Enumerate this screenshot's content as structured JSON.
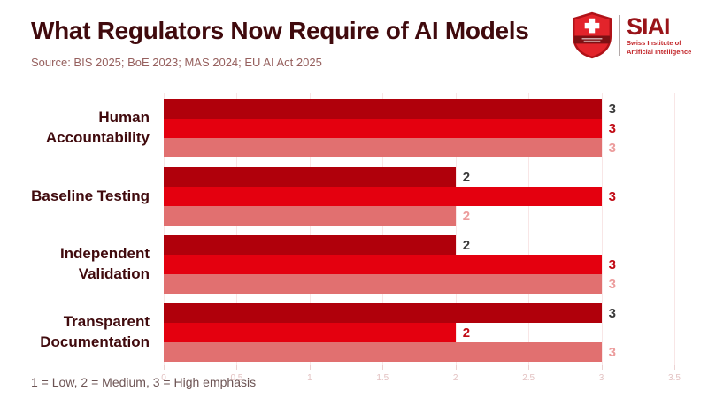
{
  "header": {
    "title": "What Regulators Now Require of AI Models"
  },
  "logo": {
    "acronym": "SIAI",
    "subtitle_line1": "Swiss Institute of",
    "subtitle_line2": "Artificial Intelligence",
    "shield_icon": "swiss-shield-icon",
    "acronym_color": "#991419",
    "subtitle_color": "#c22428"
  },
  "chart_data": {
    "type": "bar",
    "orientation": "horizontal",
    "title": "What Regulators Now Require of AI Models",
    "source": "Source: BIS 2025; BoE 2023; MAS 2024; EU AI Act 2025",
    "footnote": "1 = Low, 2 = Medium, 3 = High emphasis",
    "categories": [
      "Human Accountability",
      "Baseline Testing",
      "Independent Validation",
      "Transparent Documentation"
    ],
    "series": [
      {
        "name": "series-1-top",
        "color": "#b0000b",
        "label_color": "#3a3a3a",
        "values": [
          3,
          2,
          2,
          3
        ]
      },
      {
        "name": "series-2-middle",
        "color": "#e4000f",
        "label_color": "#c10a14",
        "values": [
          3,
          3,
          3,
          2
        ]
      },
      {
        "name": "series-3-bottom",
        "color": "#e17070",
        "label_color": "#ec9c9c",
        "values": [
          3,
          2,
          3,
          3
        ]
      }
    ],
    "xlim": [
      0,
      3.5
    ],
    "xticks": [
      "0",
      "0.5",
      "1",
      "1.5",
      "2",
      "2.5",
      "3",
      "3.5"
    ],
    "grid": true,
    "legend": "none",
    "gridline_color": "#f8e6e6",
    "tick_label_color": "#e3c2c2",
    "title_color": "#400a0d"
  }
}
